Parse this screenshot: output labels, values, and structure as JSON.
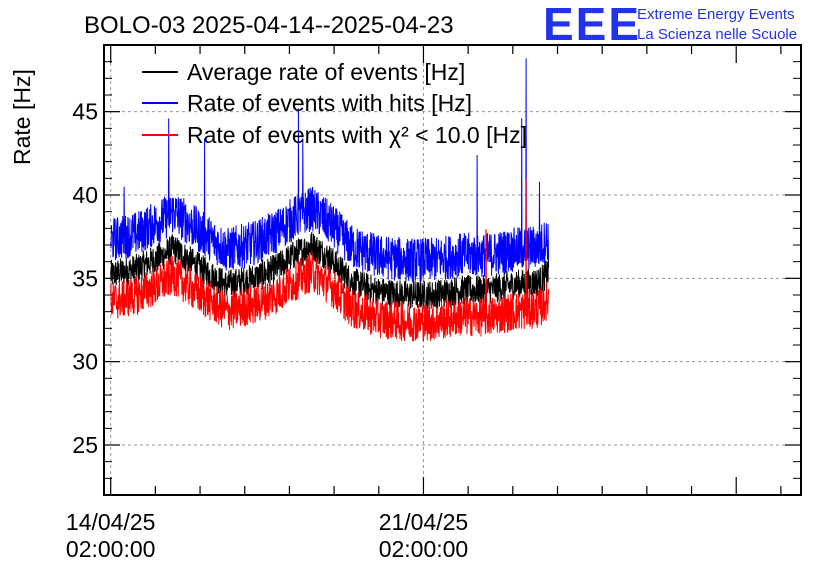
{
  "chart_data": {
    "type": "line",
    "title": "BOLO-03 2025-04-14--2025-04-23",
    "xlabel": "",
    "ylabel": "Rate [Hz]",
    "ylim": [
      22,
      49
    ],
    "yticks": [
      25,
      30,
      35,
      40,
      45
    ],
    "x_range_days": [
      -0.15,
      15.45
    ],
    "x_tick_labels": [
      {
        "date": "14/04/25",
        "time": "02:00:00",
        "day": 0
      },
      {
        "date": "21/04/25",
        "time": "02:00:00",
        "day": 7
      }
    ],
    "grid": true,
    "legend_placement": "top-left",
    "data_span_days": [
      0,
      9.8
    ],
    "series": [
      {
        "name": "Average rate of events [Hz]",
        "color": "#000000",
        "baseline": [
          [
            0,
            35.2
          ],
          [
            0.6,
            35.6
          ],
          [
            1.2,
            36.4
          ],
          [
            1.4,
            36.8
          ],
          [
            2.0,
            35.6
          ],
          [
            2.6,
            34.6
          ],
          [
            3.2,
            35.0
          ],
          [
            3.7,
            35.6
          ],
          [
            4.1,
            36.4
          ],
          [
            4.5,
            37.0
          ],
          [
            4.9,
            36.2
          ],
          [
            5.4,
            34.8
          ],
          [
            6.0,
            34.2
          ],
          [
            6.6,
            34.0
          ],
          [
            7.2,
            34.0
          ],
          [
            7.8,
            34.3
          ],
          [
            8.4,
            34.3
          ],
          [
            9.0,
            34.6
          ],
          [
            9.6,
            34.8
          ],
          [
            9.8,
            35.4
          ]
        ],
        "noise_amplitude": 0.9
      },
      {
        "name": "Rate of events with hits [Hz]",
        "color": "#0000ff",
        "baseline": [
          [
            0,
            37.3
          ],
          [
            0.6,
            37.7
          ],
          [
            1.2,
            38.6
          ],
          [
            1.4,
            39.0
          ],
          [
            2.0,
            37.8
          ],
          [
            2.6,
            36.7
          ],
          [
            3.2,
            37.1
          ],
          [
            3.7,
            37.8
          ],
          [
            4.1,
            38.6
          ],
          [
            4.5,
            39.2
          ],
          [
            4.9,
            38.3
          ],
          [
            5.4,
            36.9
          ],
          [
            6.0,
            36.3
          ],
          [
            6.6,
            36.1
          ],
          [
            7.2,
            36.1
          ],
          [
            7.8,
            36.4
          ],
          [
            8.4,
            36.4
          ],
          [
            9.0,
            36.7
          ],
          [
            9.6,
            36.9
          ],
          [
            9.8,
            37.4
          ]
        ],
        "noise_amplitude": 1.35,
        "spikes": [
          [
            0.3,
            40.5
          ],
          [
            1.3,
            44.6
          ],
          [
            2.1,
            43.4
          ],
          [
            4.2,
            45.2
          ],
          [
            4.3,
            43.4
          ],
          [
            8.2,
            42.4
          ],
          [
            9.2,
            44.6
          ],
          [
            9.3,
            48.2
          ],
          [
            9.6,
            40.8
          ]
        ]
      },
      {
        "name": "Rate of events with χ² < 10.0 [Hz]",
        "color": "#ff0000",
        "baseline": [
          [
            0,
            33.6
          ],
          [
            0.6,
            34.0
          ],
          [
            1.2,
            34.8
          ],
          [
            1.4,
            35.2
          ],
          [
            2.0,
            34.0
          ],
          [
            2.6,
            33.0
          ],
          [
            3.2,
            33.4
          ],
          [
            3.7,
            34.0
          ],
          [
            4.1,
            34.8
          ],
          [
            4.5,
            35.4
          ],
          [
            4.9,
            34.6
          ],
          [
            5.4,
            33.2
          ],
          [
            6.0,
            32.6
          ],
          [
            6.6,
            32.4
          ],
          [
            7.2,
            32.4
          ],
          [
            7.8,
            32.7
          ],
          [
            8.4,
            32.7
          ],
          [
            9.0,
            33.0
          ],
          [
            9.6,
            33.2
          ],
          [
            9.8,
            33.8
          ]
        ],
        "noise_amplitude": 1.2,
        "spikes": [
          [
            8.4,
            37.9
          ],
          [
            9.3,
            41.0
          ]
        ]
      }
    ]
  },
  "logo": {
    "letters": "EEE",
    "line1": "Extreme Energy Events",
    "line2": "La Scienza nelle Scuole",
    "color": "#2233ee"
  }
}
